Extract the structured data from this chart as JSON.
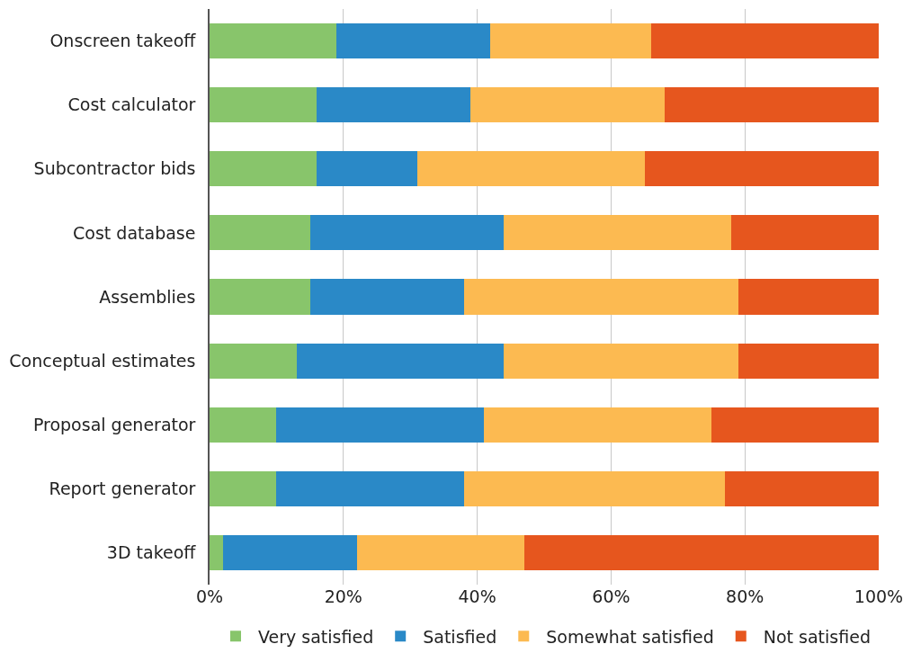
{
  "chart_data": {
    "type": "bar",
    "orientation": "horizontal",
    "stacked": true,
    "categories": [
      "Onscreen takeoff",
      "Cost calculator",
      "Subcontractor bids",
      "Cost database",
      "Assemblies",
      "Conceptual estimates",
      "Proposal generator",
      "Report generator",
      "3D takeoff"
    ],
    "series": [
      {
        "name": "Very satisfied",
        "color": "#88c56b",
        "values": [
          19,
          16,
          16,
          15,
          15,
          13,
          10,
          10,
          2
        ]
      },
      {
        "name": "Satisfied",
        "color": "#2a89c7",
        "values": [
          23,
          23,
          15,
          29,
          23,
          31,
          31,
          28,
          20
        ]
      },
      {
        "name": "Somewhat satisfied",
        "color": "#fcba51",
        "values": [
          24,
          29,
          34,
          34,
          41,
          35,
          34,
          39,
          25
        ]
      },
      {
        "name": "Not satisfied",
        "color": "#e6561e",
        "values": [
          34,
          32,
          35,
          22,
          21,
          21,
          25,
          23,
          53
        ]
      }
    ],
    "xlim": [
      0,
      100
    ],
    "xticks": [
      {
        "value": 0,
        "label": "0%"
      },
      {
        "value": 20,
        "label": "20%"
      },
      {
        "value": 40,
        "label": "40%"
      },
      {
        "value": 60,
        "label": "60%"
      },
      {
        "value": 80,
        "label": "80%"
      },
      {
        "value": 100,
        "label": "100%"
      }
    ],
    "grid": "x",
    "legend": "bottom"
  }
}
